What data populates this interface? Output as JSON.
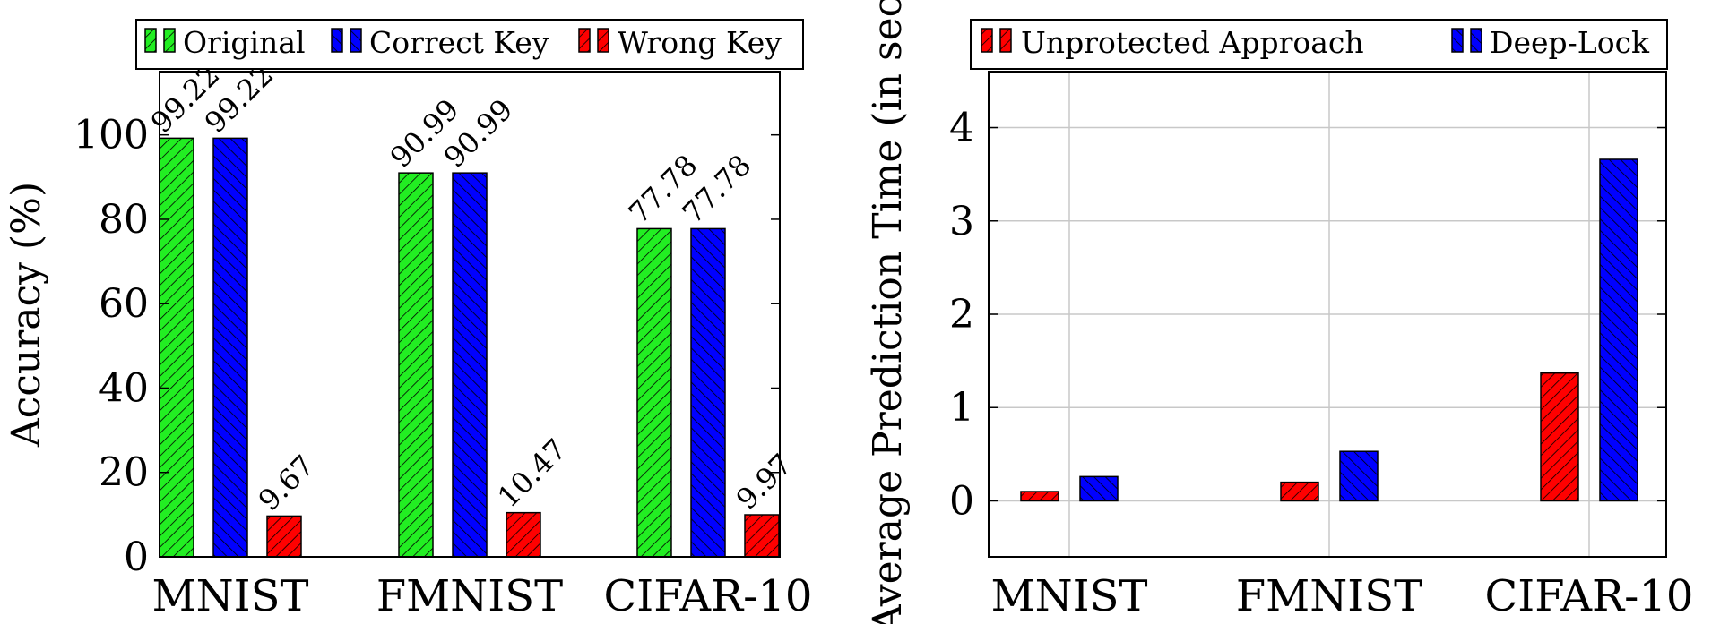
{
  "chart_data": [
    {
      "type": "bar",
      "ylabel": "Accuracy (%)",
      "xlabel": "",
      "title": "",
      "categories": [
        "MNIST",
        "FMNIST",
        "CIFAR-10"
      ],
      "ylim": [
        0,
        115
      ],
      "yticks": [
        0,
        20,
        40,
        60,
        80,
        100
      ],
      "grid": false,
      "legend_position": "top",
      "series": [
        {
          "name": "Original",
          "color": "#22ee22",
          "pattern": "north-east-lines",
          "values": [
            99.22,
            90.99,
            77.78
          ]
        },
        {
          "name": "Correct Key",
          "color": "#0000ff",
          "pattern": "north-west-lines",
          "values": [
            99.22,
            90.99,
            77.78
          ]
        },
        {
          "name": "Wrong Key",
          "color": "#ff0000",
          "pattern": "north-east-lines",
          "values": [
            9.67,
            10.47,
            9.97
          ]
        }
      ],
      "data_labels": [
        [
          "99.22",
          "90.99",
          "77.78"
        ],
        [
          "99.22",
          "90.99",
          "77.78"
        ],
        [
          "9.67",
          "10.47",
          "9.97"
        ]
      ]
    },
    {
      "type": "bar",
      "ylabel": "Average Prediction Time (in sec",
      "xlabel": "",
      "title": "",
      "categories": [
        "MNIST",
        "FMNIST",
        "CIFAR-10"
      ],
      "ylim": [
        -0.6,
        4.6
      ],
      "yticks": [
        0,
        1,
        2,
        3,
        4
      ],
      "grid": true,
      "legend_position": "top",
      "series": [
        {
          "name": "Unprotected Approach",
          "color": "#ff0000",
          "pattern": "north-east-lines",
          "values": [
            0.1,
            0.2,
            1.37
          ]
        },
        {
          "name": "Deep-Lock",
          "color": "#0000ff",
          "pattern": "north-west-lines",
          "values": [
            0.26,
            0.53,
            3.66
          ]
        }
      ]
    }
  ]
}
